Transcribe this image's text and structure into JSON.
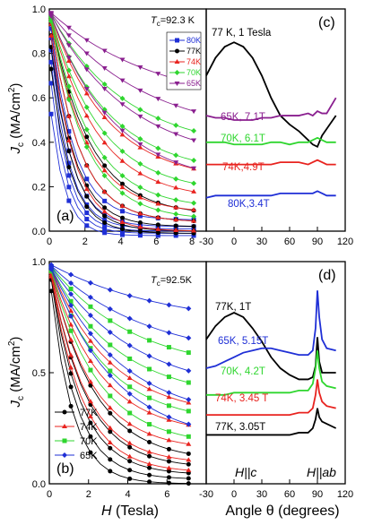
{
  "figure": {
    "panel_labels": [
      "(a)",
      "(b)",
      "(c)",
      "(d)"
    ],
    "shared_y_label_main": "J",
    "shared_y_label_sub": "c",
    "shared_y_label_unit": " (MA/cm",
    "shared_y_label_sup": "2",
    "shared_y_label_close": ")",
    "shared_x_label_left_main": "H",
    "shared_x_label_left_rest": " (Tesla)",
    "shared_x_label_right": "Angle θ (degrees)",
    "hc_label": "H||c",
    "hab_label": "H||ab"
  },
  "chart_data": [
    {
      "id": "a",
      "type": "line",
      "annotation": "T",
      "annotation_sub": "c",
      "annotation_rest": "=92.3 K",
      "xlim": [
        0,
        8.8
      ],
      "ylim": [
        0,
        1.0
      ],
      "xticks": [
        0,
        2,
        4,
        6,
        8
      ],
      "yticks": [
        0.0,
        0.2,
        0.4,
        0.6,
        0.8,
        1.0
      ],
      "ytick_labels": [
        "0.0",
        "0.2",
        "0.4",
        "0.6",
        "0.8",
        "1.0"
      ],
      "legend": [
        "80K",
        "77K",
        "74K",
        "70K",
        "65K"
      ],
      "legend_position": "top-right",
      "series": [
        {
          "name": "80K",
          "color": "#1f2fd6",
          "marker": "square",
          "curves": [
            [
              0.98,
              0.05,
              1.3
            ],
            [
              0.95,
              0.02,
              1.1
            ],
            [
              0.9,
              0.01,
              1.0
            ],
            [
              0.85,
              0.0,
              0.9
            ],
            [
              0.75,
              -0.01,
              0.85
            ],
            [
              0.6,
              -0.02,
              0.8
            ]
          ]
        },
        {
          "name": "77K",
          "color": "#000000",
          "marker": "circle",
          "curves": [
            [
              0.99,
              0.07,
              2.2
            ],
            [
              0.99,
              0.04,
              1.6
            ],
            [
              0.95,
              0.02,
              1.3
            ],
            [
              0.9,
              0.0,
              1.2
            ],
            [
              0.8,
              -0.01,
              1.1
            ]
          ]
        },
        {
          "name": "74K",
          "color": "#e8231f",
          "marker": "triangle",
          "curves": [
            [
              0.99,
              0.22,
              3.2
            ],
            [
              0.99,
              0.14,
              2.6
            ],
            [
              0.99,
              0.08,
              2.0
            ],
            [
              0.99,
              0.04,
              1.6
            ],
            [
              0.95,
              0.0,
              1.3
            ]
          ]
        },
        {
          "name": "70K",
          "color": "#2fd62f",
          "marker": "diamond",
          "curves": [
            [
              0.99,
              0.36,
              4.2
            ],
            [
              0.99,
              0.25,
              3.4
            ],
            [
              0.99,
              0.17,
              2.8
            ],
            [
              0.99,
              0.1,
              2.3
            ],
            [
              0.99,
              0.05,
              2.0
            ]
          ]
        },
        {
          "name": "65K",
          "color": "#8a1f8f",
          "marker": "tri-down",
          "curves": [
            [
              0.99,
              0.55,
              6.0
            ],
            [
              0.99,
              0.42,
              5.2
            ],
            [
              0.99,
              0.3,
              4.4
            ],
            [
              0.99,
              0.2,
              3.6
            ]
          ]
        }
      ]
    },
    {
      "id": "c",
      "type": "line",
      "xlim": [
        -30,
        120
      ],
      "ylim": [
        0,
        1.0
      ],
      "xticks": [
        -30,
        0,
        30,
        60,
        90,
        120
      ],
      "series": [
        {
          "name": "77 K, 1 Tesla",
          "color": "#000000"
        },
        {
          "name": "65K, 7.1T",
          "color": "#8a1f8f"
        },
        {
          "name": "70K, 6.1T",
          "color": "#2fd62f"
        },
        {
          "name": "74K,4.9T",
          "color": "#e8231f"
        },
        {
          "name": "80K,3.4T",
          "color": "#1f2fd6"
        }
      ],
      "angles": [
        -30,
        -20,
        -10,
        0,
        10,
        20,
        30,
        40,
        50,
        60,
        70,
        80,
        85,
        90,
        95,
        100,
        110
      ],
      "values": [
        [
          0.7,
          0.78,
          0.83,
          0.85,
          0.83,
          0.78,
          0.7,
          0.6,
          0.52,
          0.48,
          0.45,
          0.41,
          0.39,
          0.38,
          0.43,
          0.46,
          0.52
        ],
        [
          0.52,
          0.51,
          0.51,
          0.5,
          0.5,
          0.5,
          0.51,
          0.51,
          0.52,
          0.52,
          0.52,
          0.53,
          0.52,
          0.54,
          0.53,
          0.53,
          0.6
        ],
        [
          0.4,
          0.4,
          0.4,
          0.39,
          0.39,
          0.39,
          0.39,
          0.4,
          0.4,
          0.39,
          0.4,
          0.4,
          0.41,
          0.42,
          0.41,
          0.4,
          0.4
        ],
        [
          0.3,
          0.3,
          0.3,
          0.3,
          0.3,
          0.3,
          0.3,
          0.3,
          0.31,
          0.31,
          0.31,
          0.3,
          0.31,
          0.32,
          0.31,
          0.3,
          0.3
        ],
        [
          0.15,
          0.16,
          0.16,
          0.16,
          0.16,
          0.16,
          0.16,
          0.16,
          0.17,
          0.17,
          0.17,
          0.17,
          0.17,
          0.18,
          0.17,
          0.16,
          0.16
        ]
      ]
    },
    {
      "id": "b",
      "type": "line",
      "annotation": "T",
      "annotation_sub": "c",
      "annotation_rest": "=92.5K",
      "xlim": [
        0,
        8.0
      ],
      "ylim": [
        0,
        1.0
      ],
      "xticks": [
        0,
        2,
        4,
        6
      ],
      "yticks": [
        0.0,
        0.5,
        1.0
      ],
      "ytick_labels": [
        "0.0",
        "0.5",
        "1.0"
      ],
      "legend": [
        "77K",
        "74K",
        "70K",
        "65K"
      ],
      "legend_position": "bottom-left",
      "series": [
        {
          "name": "77K",
          "color": "#000000",
          "marker": "circle",
          "curves": [
            [
              0.99,
              0.1,
              2.2
            ],
            [
              0.99,
              0.07,
              1.8
            ],
            [
              0.99,
              0.04,
              1.5
            ],
            [
              0.99,
              0.02,
              1.3
            ],
            [
              0.95,
              0.0,
              1.1
            ]
          ]
        },
        {
          "name": "74K",
          "color": "#e8231f",
          "marker": "triangle",
          "curves": [
            [
              0.99,
              0.3,
              3.0
            ],
            [
              0.99,
              0.22,
              2.5
            ],
            [
              0.99,
              0.15,
              2.1
            ],
            [
              0.99,
              0.09,
              1.8
            ],
            [
              0.99,
              0.05,
              1.6
            ]
          ]
        },
        {
          "name": "70K",
          "color": "#2fd62f",
          "marker": "square",
          "curves": [
            [
              0.99,
              0.5,
              4.2
            ],
            [
              0.99,
              0.38,
              3.4
            ],
            [
              0.99,
              0.27,
              2.8
            ],
            [
              0.99,
              0.17,
              2.4
            ]
          ]
        },
        {
          "name": "65K",
          "color": "#1f2fd6",
          "marker": "diamond",
          "curves": [
            [
              0.99,
              0.7,
              6.0
            ],
            [
              0.99,
              0.55,
              5.0
            ],
            [
              0.99,
              0.4,
              4.2
            ],
            [
              0.99,
              0.28,
              3.6
            ],
            [
              0.99,
              0.18,
              3.2
            ]
          ]
        }
      ]
    },
    {
      "id": "d",
      "type": "line",
      "xlim": [
        -30,
        120
      ],
      "ylim": [
        0,
        1.0
      ],
      "xticks": [
        -30,
        0,
        30,
        60,
        90,
        120
      ],
      "series": [
        {
          "name": "77K, 1T",
          "color": "#000000"
        },
        {
          "name": "65K, 5.15T",
          "color": "#1f2fd6"
        },
        {
          "name": "70K, 4.2T",
          "color": "#2fd62f"
        },
        {
          "name": "74K, 3.45 T",
          "color": "#e8231f"
        },
        {
          "name": "77K, 3.05T",
          "color": "#000000"
        }
      ],
      "angles": [
        -30,
        -20,
        -10,
        0,
        10,
        20,
        30,
        40,
        50,
        60,
        70,
        80,
        85,
        88,
        90,
        92,
        95,
        100,
        110
      ],
      "values": [
        [
          0.65,
          0.71,
          0.75,
          0.77,
          0.75,
          0.7,
          0.64,
          0.57,
          0.52,
          0.49,
          0.47,
          0.47,
          0.48,
          0.53,
          0.66,
          0.55,
          0.5,
          0.5,
          0.5
        ],
        [
          0.52,
          0.53,
          0.55,
          0.57,
          0.59,
          0.6,
          0.61,
          0.61,
          0.6,
          0.59,
          0.58,
          0.58,
          0.6,
          0.7,
          0.87,
          0.75,
          0.65,
          0.61,
          0.6
        ],
        [
          0.4,
          0.4,
          0.4,
          0.41,
          0.41,
          0.41,
          0.41,
          0.41,
          0.41,
          0.41,
          0.42,
          0.42,
          0.45,
          0.52,
          0.6,
          0.52,
          0.46,
          0.44,
          0.43
        ],
        [
          0.31,
          0.31,
          0.31,
          0.31,
          0.31,
          0.31,
          0.31,
          0.31,
          0.31,
          0.31,
          0.32,
          0.32,
          0.34,
          0.4,
          0.47,
          0.41,
          0.37,
          0.35,
          0.34
        ],
        [
          0.22,
          0.22,
          0.22,
          0.22,
          0.22,
          0.22,
          0.22,
          0.22,
          0.22,
          0.22,
          0.23,
          0.23,
          0.25,
          0.29,
          0.34,
          0.3,
          0.28,
          0.27,
          0.25
        ]
      ]
    }
  ]
}
